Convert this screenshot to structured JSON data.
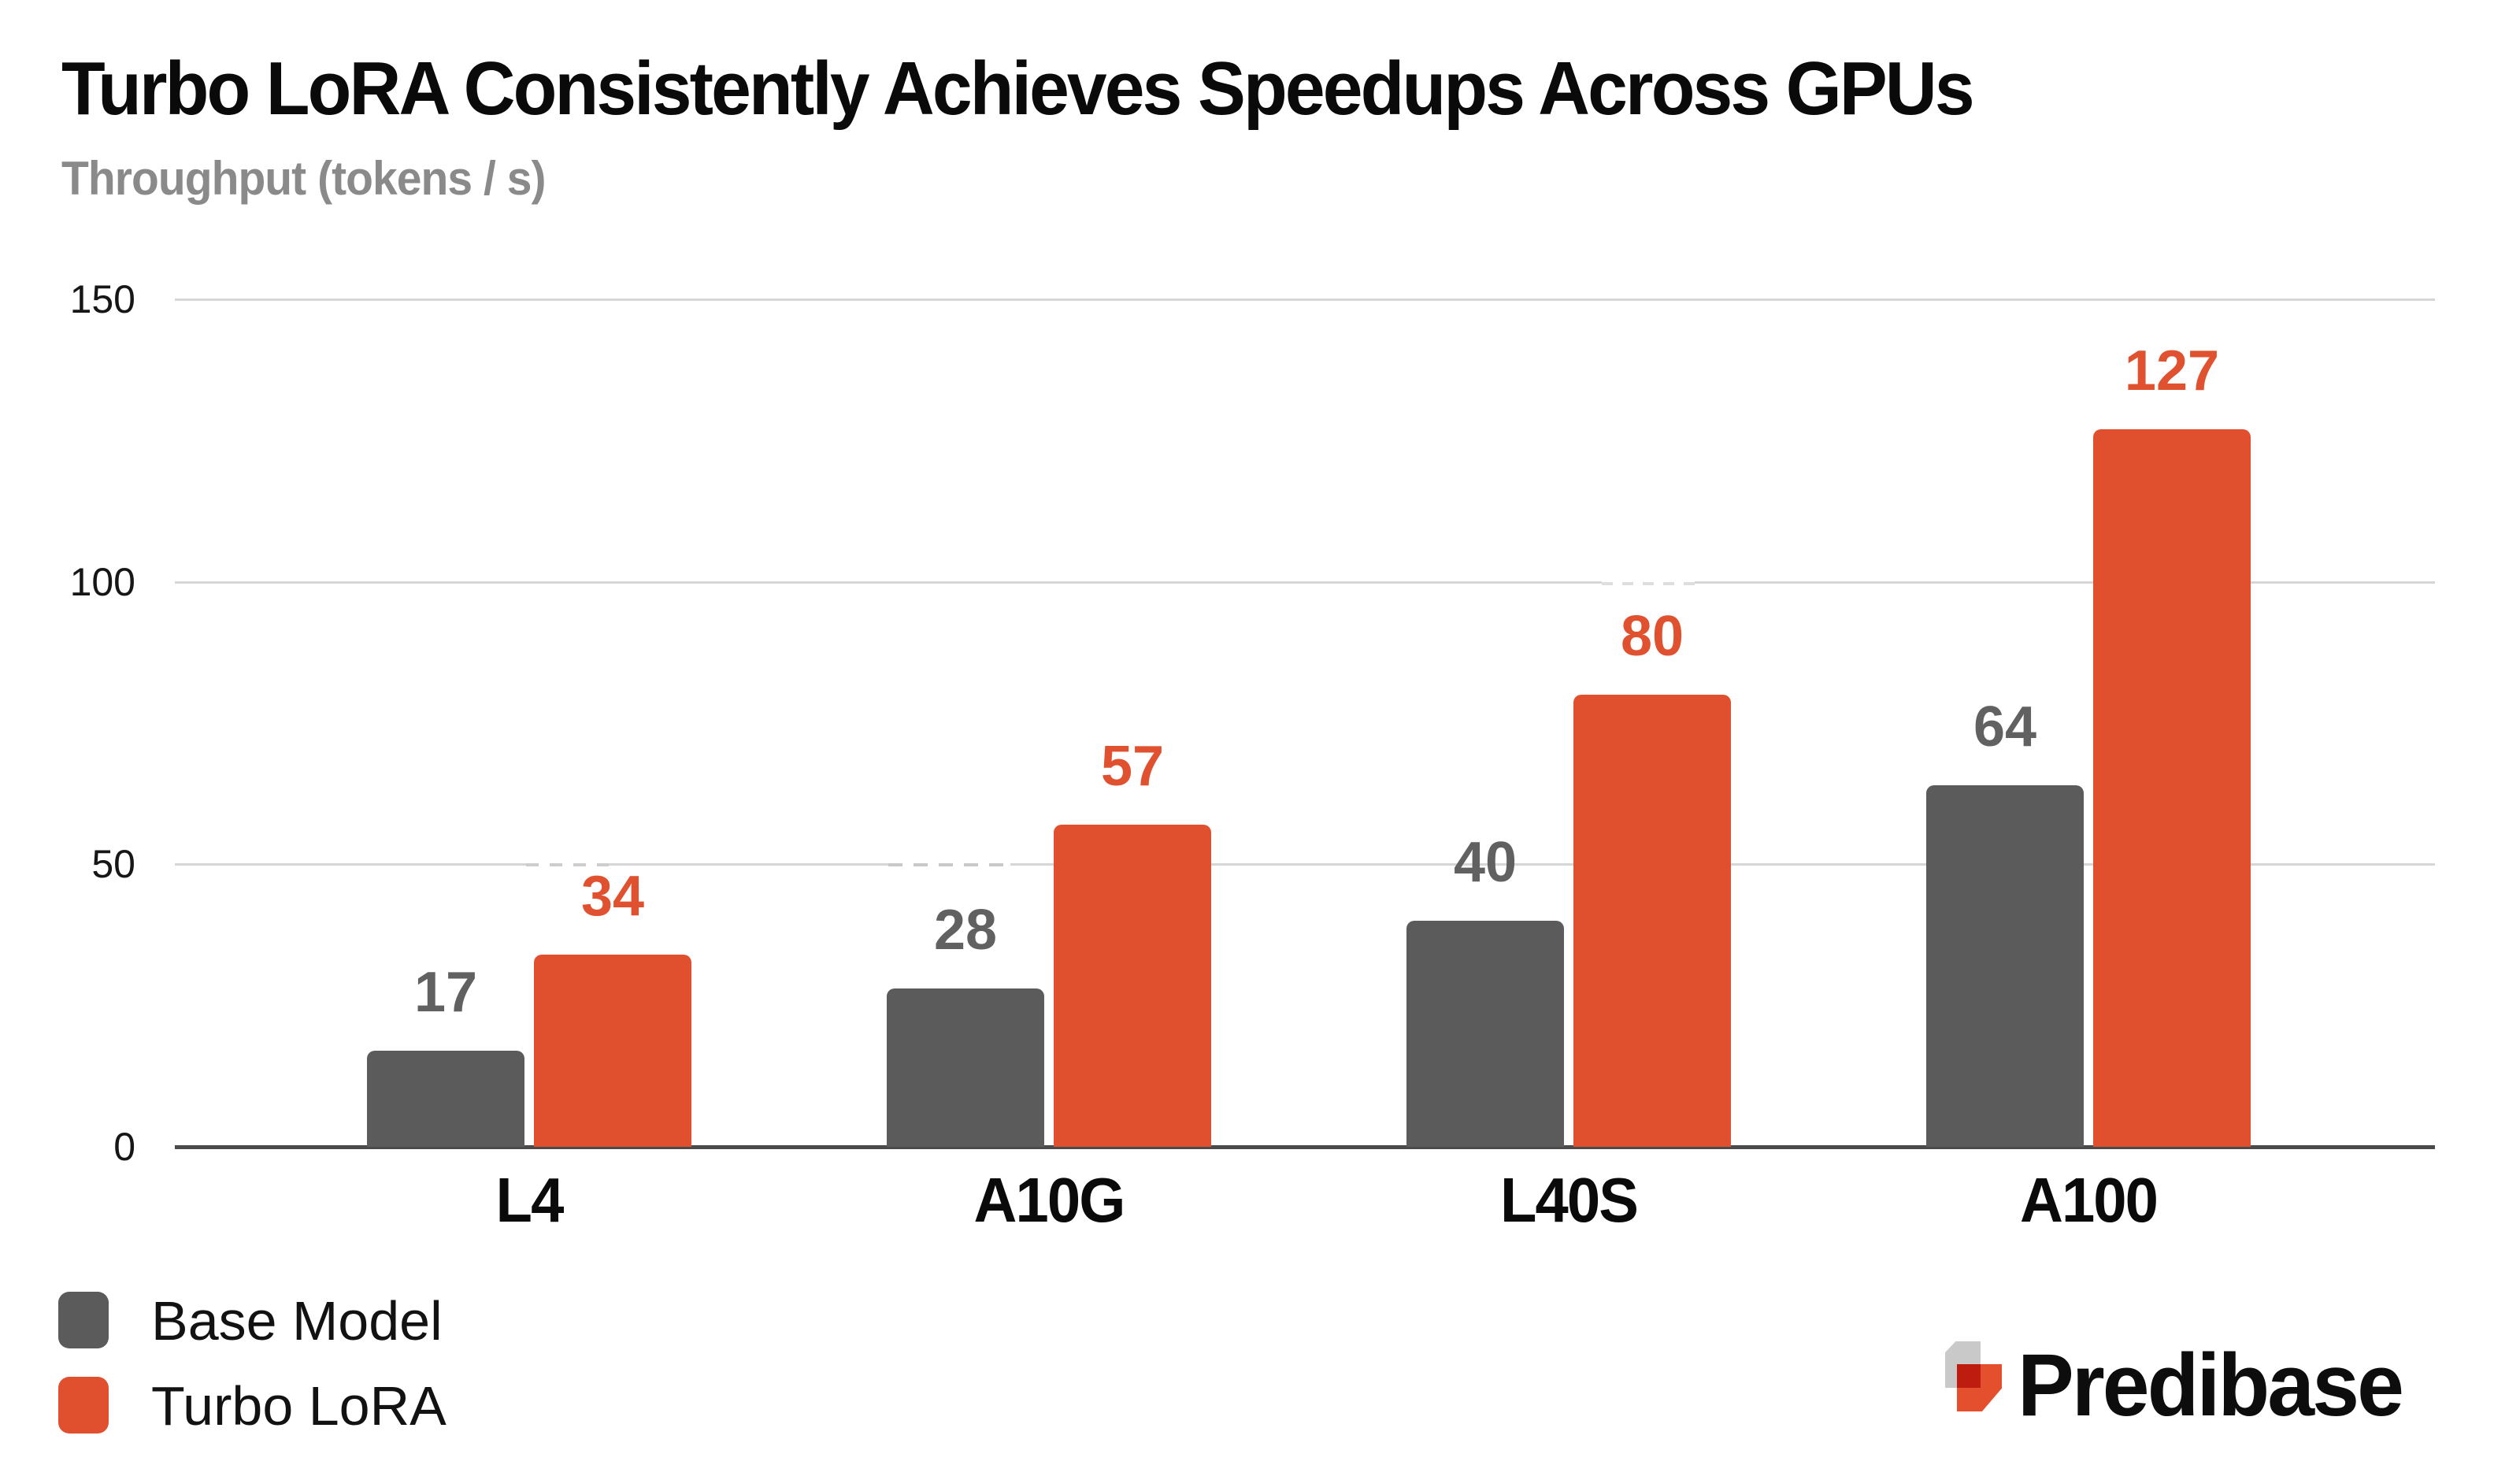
{
  "header": {
    "title": "Turbo LoRA Consistently Achieves Speedups Across GPUs",
    "subtitle": "Throughput (tokens / s)"
  },
  "chart_data": {
    "type": "bar",
    "title": "Turbo LoRA Consistently Achieves Speedups Across GPUs",
    "ylabel": "Throughput (tokens / s)",
    "categories": [
      "L4",
      "A10G",
      "L40S",
      "A100"
    ],
    "series": [
      {
        "name": "Base Model",
        "color": "#5B5B5B",
        "label_color": "#616161",
        "values": [
          17,
          28,
          40,
          64
        ]
      },
      {
        "name": "Turbo LoRA",
        "color": "#E0502F",
        "label_color": "#DF512F",
        "values": [
          34,
          57,
          80,
          127
        ]
      }
    ],
    "ylim": [
      0,
      150
    ],
    "y_ticks": [
      0,
      50,
      100,
      150
    ],
    "grid": true,
    "value_labels": true,
    "legend_position": "bottom-left"
  },
  "legend": {
    "items": [
      {
        "label": "Base Model",
        "color": "#5B5B5B"
      },
      {
        "label": "Turbo LoRA",
        "color": "#E0502F"
      }
    ]
  },
  "branding": {
    "wordmark": "Predibase"
  },
  "colors": {
    "grid_line": "#D6D6D6",
    "axis_line": "#4A4A4A",
    "title_text": "#0A0A0A",
    "subtitle_text": "#8A8A8A",
    "logo_gray": "#C9C9C9",
    "logo_orange": "#E4502E",
    "logo_red": "#BE1C0E"
  }
}
